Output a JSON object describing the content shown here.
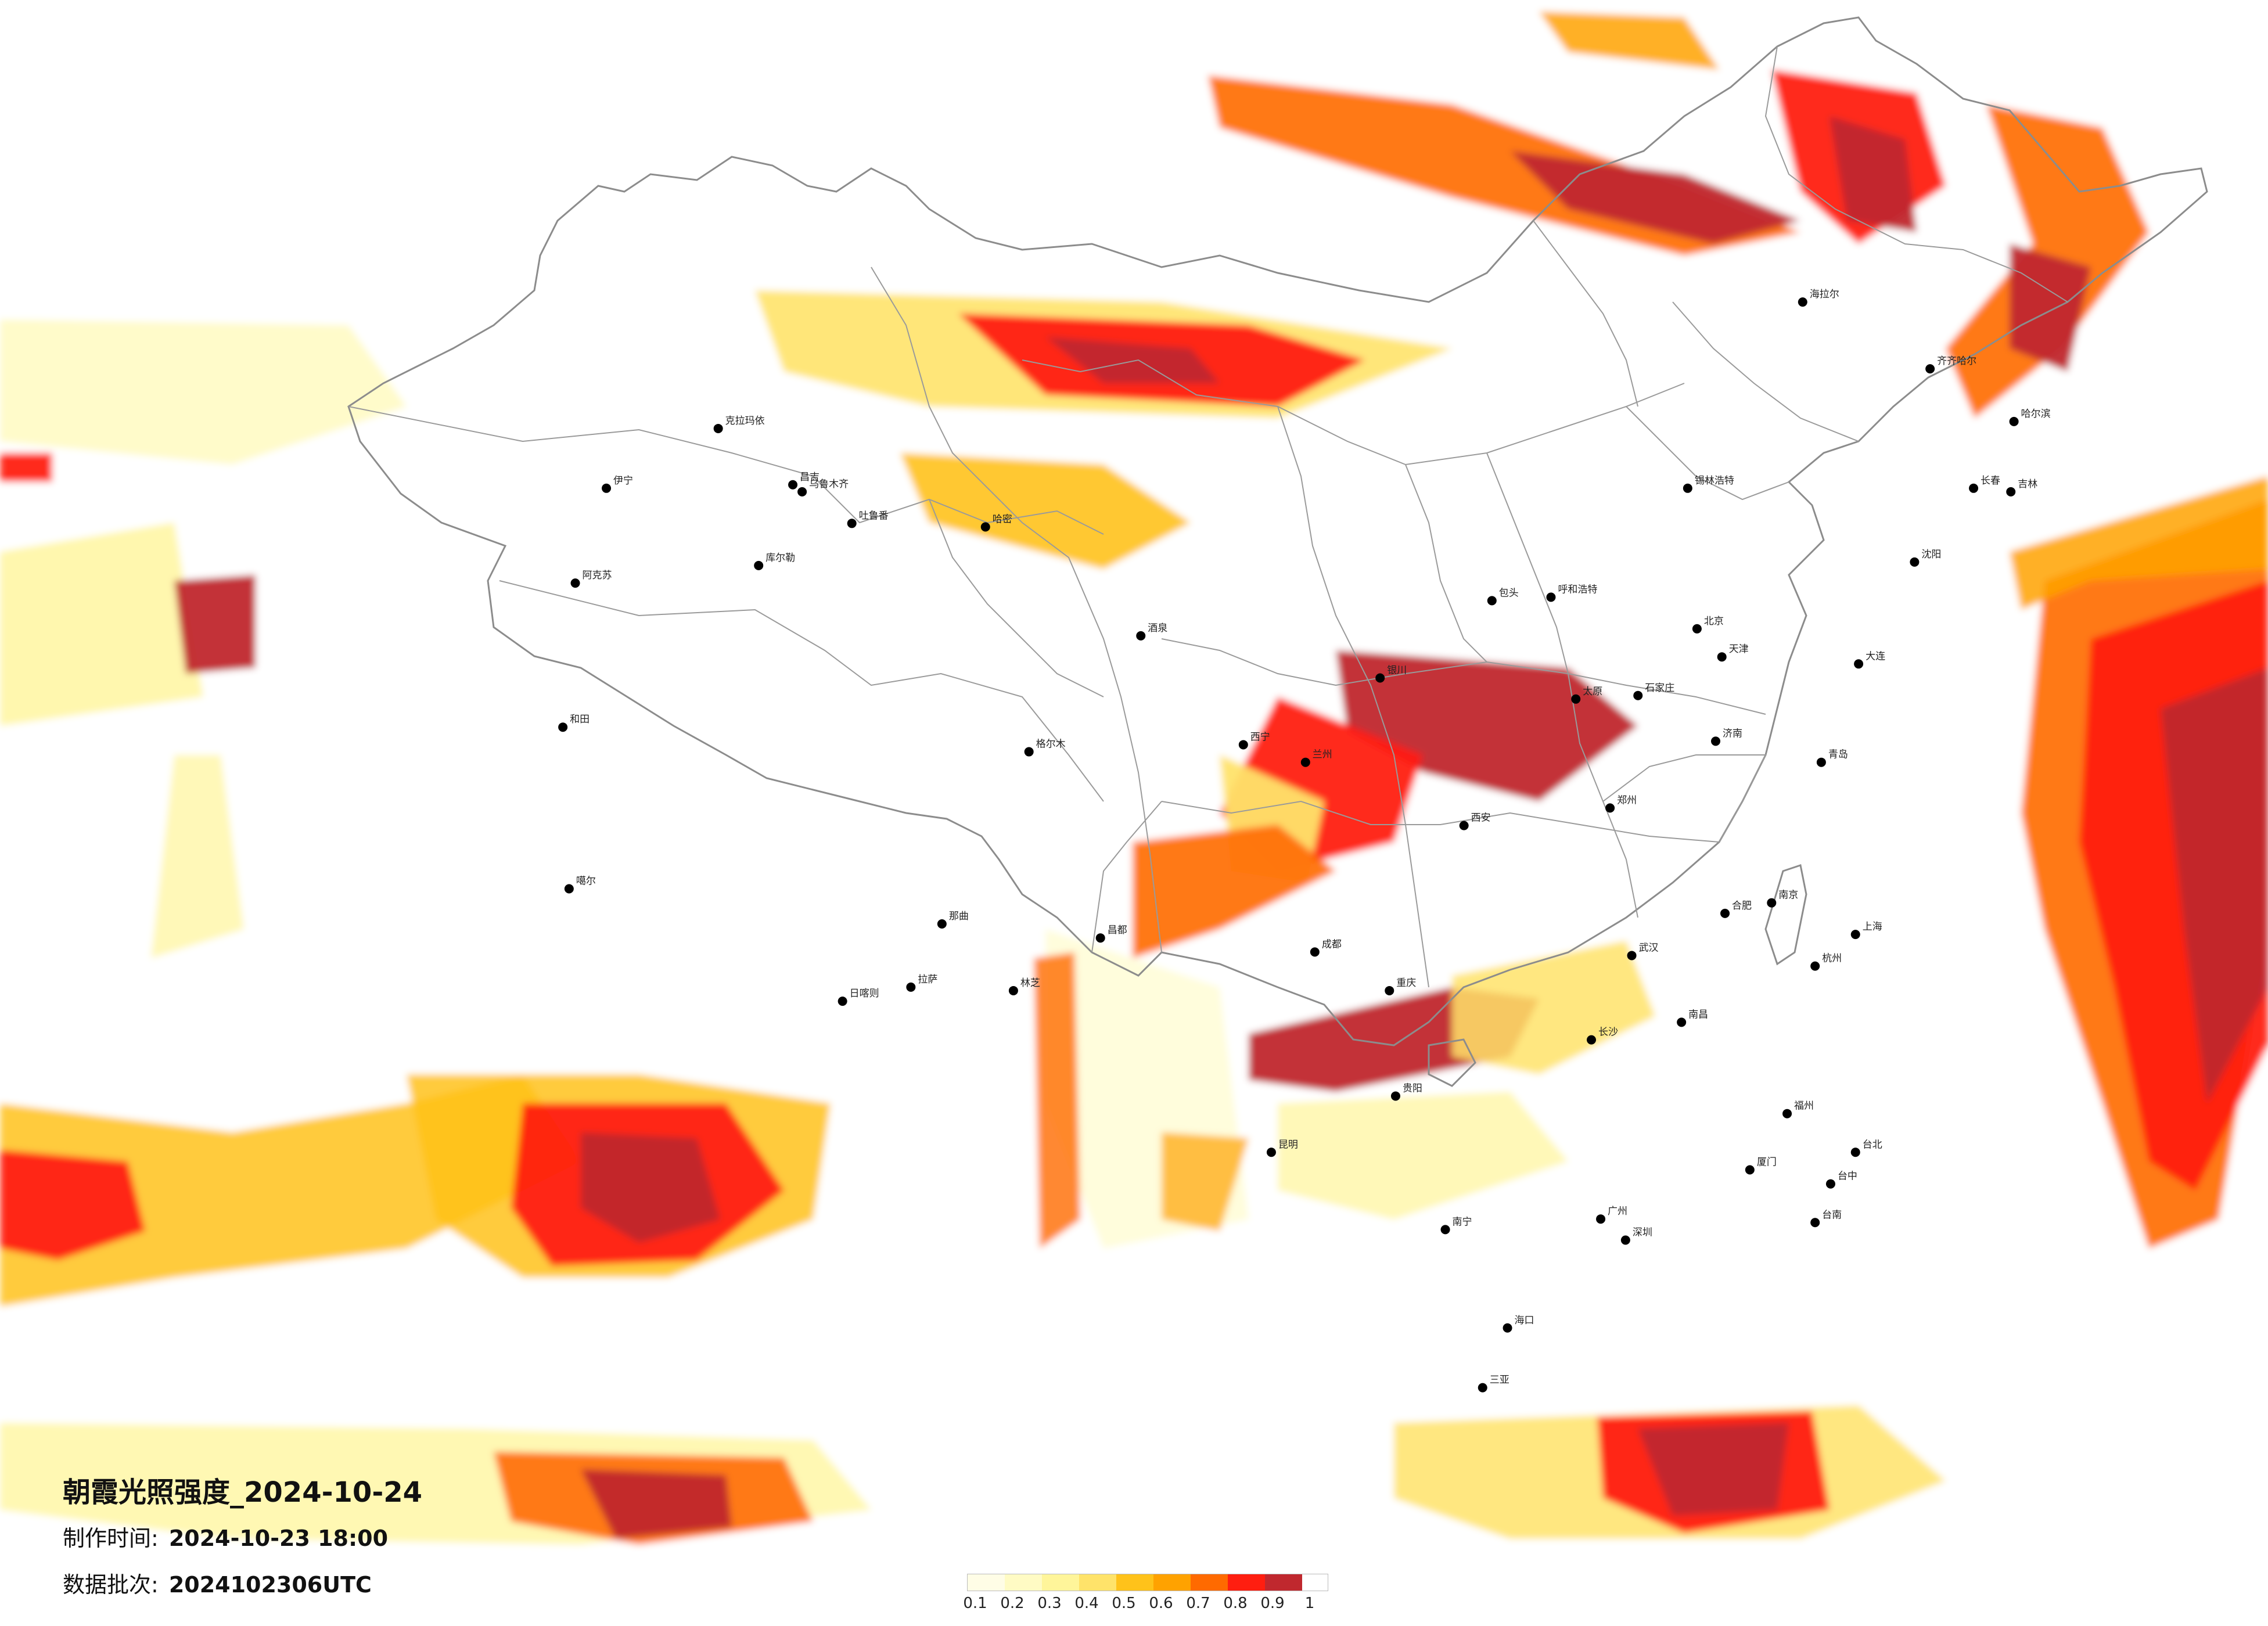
{
  "map": {
    "title": "朝霞光照强度_2024-10-24",
    "made_label": "制作时间:",
    "made_value": "2024-10-23 18:00",
    "batch_label": "数据批次:",
    "batch_value": "2024102306UTC"
  },
  "legend": {
    "colors": [
      "#fffde6",
      "#fffbc4",
      "#fff59a",
      "#ffe36a",
      "#ffc21a",
      "#ffa200",
      "#ff6a00",
      "#ff1e10",
      "#c0282e"
    ],
    "ticks": [
      "0.1",
      "0.2",
      "0.3",
      "0.4",
      "0.5",
      "0.6",
      "0.7",
      "0.8",
      "0.9",
      "1"
    ]
  },
  "cities": [
    {
      "name": "克拉玛依",
      "lon": 84.9,
      "lat": 45.6
    },
    {
      "name": "阿克苏",
      "lon": 80.3,
      "lat": 41.2
    },
    {
      "name": "伊宁",
      "lon": 81.3,
      "lat": 43.9
    },
    {
      "name": "昌吉",
      "lon": 87.3,
      "lat": 44.0
    },
    {
      "name": "乌鲁木齐",
      "lon": 87.6,
      "lat": 43.8
    },
    {
      "name": "吐鲁番",
      "lon": 89.2,
      "lat": 42.9
    },
    {
      "name": "哈密",
      "lon": 93.5,
      "lat": 42.8
    },
    {
      "name": "库尔勒",
      "lon": 86.2,
      "lat": 41.7
    },
    {
      "name": "和田",
      "lon": 79.9,
      "lat": 37.1
    },
    {
      "name": "噶尔",
      "lon": 80.1,
      "lat": 32.5
    },
    {
      "name": "那曲",
      "lon": 92.1,
      "lat": 31.5
    },
    {
      "name": "日喀则",
      "lon": 88.9,
      "lat": 29.3
    },
    {
      "name": "拉萨",
      "lon": 91.1,
      "lat": 29.7
    },
    {
      "name": "林芝",
      "lon": 94.4,
      "lat": 29.6
    },
    {
      "name": "昌都",
      "lon": 97.2,
      "lat": 31.1
    },
    {
      "name": "格尔木",
      "lon": 94.9,
      "lat": 36.4
    },
    {
      "name": "西宁",
      "lon": 101.8,
      "lat": 36.6
    },
    {
      "name": "酒泉",
      "lon": 98.5,
      "lat": 39.7
    },
    {
      "name": "兰州",
      "lon": 103.8,
      "lat": 36.1
    },
    {
      "name": "银川",
      "lon": 106.2,
      "lat": 38.5
    },
    {
      "name": "呼和浩特",
      "lon": 111.7,
      "lat": 40.8
    },
    {
      "name": "包头",
      "lon": 109.8,
      "lat": 40.7
    },
    {
      "name": "锡林浩特",
      "lon": 116.1,
      "lat": 43.9
    },
    {
      "name": "海拉尔",
      "lon": 119.8,
      "lat": 49.2
    },
    {
      "name": "齐齐哈尔",
      "lon": 123.9,
      "lat": 47.3
    },
    {
      "name": "哈尔滨",
      "lon": 126.6,
      "lat": 45.8
    },
    {
      "name": "长春",
      "lon": 125.3,
      "lat": 43.9
    },
    {
      "name": "吉林",
      "lon": 126.5,
      "lat": 43.8
    },
    {
      "name": "沈阳",
      "lon": 123.4,
      "lat": 41.8
    },
    {
      "name": "大连",
      "lon": 121.6,
      "lat": 38.9
    },
    {
      "name": "北京",
      "lon": 116.4,
      "lat": 39.9
    },
    {
      "name": "天津",
      "lon": 117.2,
      "lat": 39.1
    },
    {
      "name": "石家庄",
      "lon": 114.5,
      "lat": 38.0
    },
    {
      "name": "太原",
      "lon": 112.5,
      "lat": 37.9
    },
    {
      "name": "济南",
      "lon": 117.0,
      "lat": 36.7
    },
    {
      "name": "青岛",
      "lon": 120.4,
      "lat": 36.1
    },
    {
      "name": "郑州",
      "lon": 113.6,
      "lat": 34.8
    },
    {
      "name": "西安",
      "lon": 108.9,
      "lat": 34.3
    },
    {
      "name": "南京",
      "lon": 118.8,
      "lat": 32.1
    },
    {
      "name": "上海",
      "lon": 121.5,
      "lat": 31.2
    },
    {
      "name": "杭州",
      "lon": 120.2,
      "lat": 30.3
    },
    {
      "name": "合肥",
      "lon": 117.3,
      "lat": 31.8
    },
    {
      "name": "武汉",
      "lon": 114.3,
      "lat": 30.6
    },
    {
      "name": "长沙",
      "lon": 113.0,
      "lat": 28.2
    },
    {
      "name": "南昌",
      "lon": 115.9,
      "lat": 28.7
    },
    {
      "name": "福州",
      "lon": 119.3,
      "lat": 26.1
    },
    {
      "name": "厦门",
      "lon": 118.1,
      "lat": 24.5
    },
    {
      "name": "广州",
      "lon": 113.3,
      "lat": 23.1
    },
    {
      "name": "深圳",
      "lon": 114.1,
      "lat": 22.5
    },
    {
      "name": "南宁",
      "lon": 108.3,
      "lat": 22.8
    },
    {
      "name": "海口",
      "lon": 110.3,
      "lat": 20.0
    },
    {
      "name": "三亚",
      "lon": 109.5,
      "lat": 18.3
    },
    {
      "name": "贵阳",
      "lon": 106.7,
      "lat": 26.6
    },
    {
      "name": "昆明",
      "lon": 102.7,
      "lat": 25.0
    },
    {
      "name": "成都",
      "lon": 104.1,
      "lat": 30.7
    },
    {
      "name": "重庆",
      "lon": 106.5,
      "lat": 29.6
    },
    {
      "name": "台北",
      "lon": 121.5,
      "lat": 25.0
    },
    {
      "name": "台中",
      "lon": 120.7,
      "lat": 24.1
    },
    {
      "name": "台南",
      "lon": 120.2,
      "lat": 23.0
    }
  ]
}
